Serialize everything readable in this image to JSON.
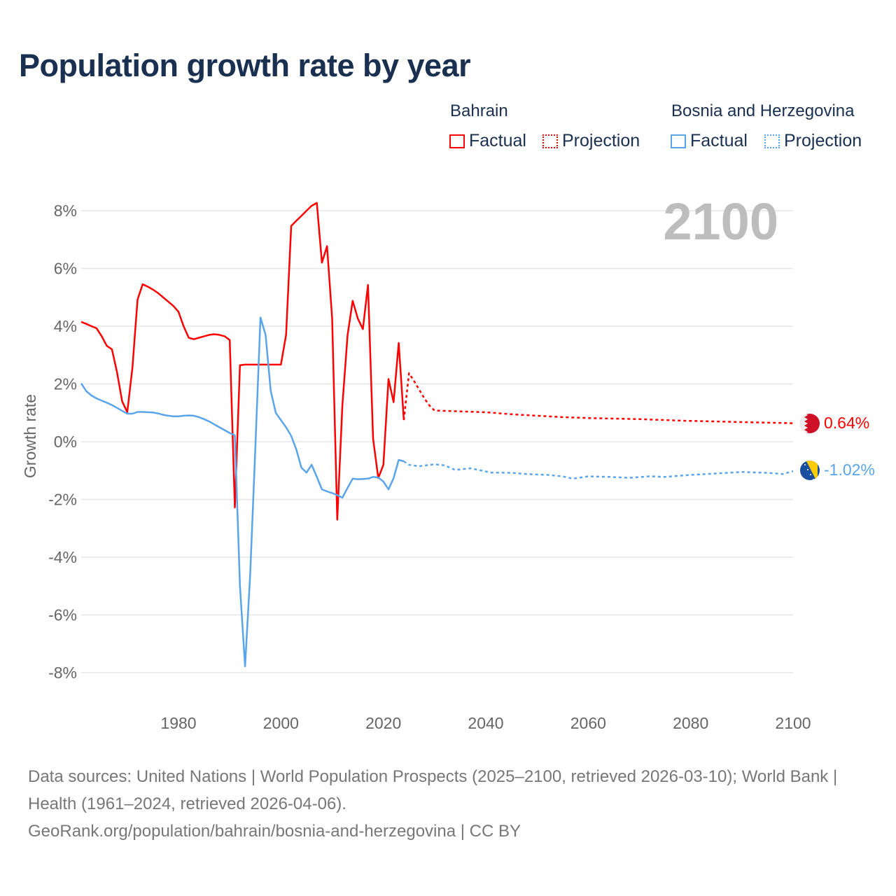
{
  "title": "Population growth rate by year",
  "legend": {
    "groups": [
      {
        "name": "Bahrain",
        "color": "#ff0000",
        "items": [
          "Factual",
          "Projection"
        ]
      },
      {
        "name": "Bosnia and Herzegovina",
        "color": "#5aa5ea",
        "items": [
          "Factual",
          "Projection"
        ]
      }
    ]
  },
  "current_year_label": "2100",
  "end_labels": {
    "bahrain": "0.64%",
    "bosnia": "-1.02%"
  },
  "footer": {
    "sources": "Data sources: United Nations | World Population Prospects (2025–2100, retrieved 2026-03-10); World Bank | Health (1961–2024, retrieved 2026-04-06).",
    "link": "GeoRank.org/population/bahrain/bosnia-and-herzegovina | CC BY"
  },
  "chart_data": {
    "type": "line",
    "title": "Population growth rate by year",
    "xlabel": "",
    "ylabel": "Growth rate",
    "xlim": [
      1961,
      2100
    ],
    "ylim": [
      -8,
      8
    ],
    "x_ticks": [
      "1980",
      "2000",
      "2020",
      "2040",
      "2060",
      "2080",
      "2100"
    ],
    "y_ticks": [
      "8%",
      "6%",
      "4%",
      "2%",
      "0%",
      "-2%",
      "-4%",
      "-6%",
      "-8%"
    ],
    "grid": true,
    "legend_position": "top-right",
    "series": [
      {
        "name": "Bahrain",
        "kind": "Factual",
        "color": "#ff0000",
        "x": [
          1961,
          1962,
          1963,
          1964,
          1965,
          1966,
          1967,
          1968,
          1969,
          1970,
          1971,
          1972,
          1973,
          1974,
          1975,
          1976,
          1977,
          1978,
          1979,
          1980,
          1981,
          1982,
          1983,
          1984,
          1985,
          1986,
          1987,
          1988,
          1989,
          1990,
          1991,
          1992,
          1993,
          1994,
          1995,
          1996,
          1997,
          1998,
          1999,
          2000,
          2001,
          2002,
          2003,
          2004,
          2005,
          2006,
          2007,
          2008,
          2009,
          2010,
          2011,
          2012,
          2013,
          2014,
          2015,
          2016,
          2017,
          2018,
          2019,
          2020,
          2021,
          2022,
          2023,
          2024
        ],
        "y": [
          4.15,
          4.08,
          4.0,
          3.93,
          3.65,
          3.32,
          3.2,
          2.4,
          1.4,
          1.02,
          2.57,
          4.92,
          5.45,
          5.37,
          5.27,
          5.15,
          5.0,
          4.85,
          4.7,
          4.5,
          4.0,
          3.6,
          3.55,
          3.6,
          3.65,
          3.7,
          3.72,
          3.7,
          3.65,
          3.52,
          -2.28,
          2.65,
          2.67,
          2.67,
          2.67,
          2.67,
          2.67,
          2.67,
          2.67,
          2.67,
          3.7,
          7.47,
          7.65,
          7.82,
          8.0,
          8.17,
          8.27,
          6.2,
          6.77,
          4.27,
          -2.7,
          1.25,
          3.68,
          4.88,
          4.27,
          3.9,
          5.43,
          0.1,
          -1.26,
          -0.8,
          2.17,
          1.37,
          3.42,
          0.75
        ]
      },
      {
        "name": "Bahrain",
        "kind": "Projection",
        "color": "#ff0000",
        "x": [
          2024,
          2025,
          2026,
          2027,
          2028,
          2029,
          2030,
          2035,
          2040,
          2045,
          2050,
          2055,
          2060,
          2065,
          2070,
          2075,
          2080,
          2085,
          2090,
          2095,
          2100
        ],
        "y": [
          0.75,
          2.37,
          2.1,
          1.8,
          1.5,
          1.25,
          1.08,
          1.05,
          1.02,
          0.95,
          0.9,
          0.85,
          0.82,
          0.8,
          0.78,
          0.75,
          0.72,
          0.7,
          0.68,
          0.66,
          0.64
        ]
      },
      {
        "name": "Bosnia and Herzegovina",
        "kind": "Factual",
        "color": "#5aa5ea",
        "x": [
          1961,
          1962,
          1963,
          1964,
          1965,
          1966,
          1967,
          1968,
          1969,
          1970,
          1971,
          1972,
          1973,
          1974,
          1975,
          1976,
          1977,
          1978,
          1979,
          1980,
          1981,
          1982,
          1983,
          1984,
          1985,
          1986,
          1987,
          1988,
          1989,
          1990,
          1991,
          1992,
          1993,
          1994,
          1995,
          1996,
          1997,
          1998,
          1999,
          2000,
          2001,
          2002,
          2003,
          2004,
          2005,
          2006,
          2007,
          2008,
          2009,
          2010,
          2011,
          2012,
          2013,
          2014,
          2015,
          2016,
          2017,
          2018,
          2019,
          2020,
          2021,
          2022,
          2023,
          2024
        ],
        "y": [
          2.02,
          1.75,
          1.6,
          1.5,
          1.42,
          1.35,
          1.27,
          1.17,
          1.07,
          0.97,
          0.97,
          1.03,
          1.03,
          1.02,
          1.01,
          0.98,
          0.93,
          0.9,
          0.88,
          0.88,
          0.9,
          0.91,
          0.9,
          0.85,
          0.78,
          0.7,
          0.6,
          0.5,
          0.4,
          0.3,
          0.22,
          -5.0,
          -7.78,
          -4.6,
          -0.2,
          4.3,
          3.7,
          1.77,
          1.0,
          0.75,
          0.5,
          0.2,
          -0.27,
          -0.9,
          -1.07,
          -0.8,
          -1.22,
          -1.65,
          -1.72,
          -1.78,
          -1.85,
          -1.94,
          -1.6,
          -1.28,
          -1.3,
          -1.29,
          -1.28,
          -1.22,
          -1.24,
          -1.38,
          -1.65,
          -1.26,
          -0.63,
          -0.68
        ]
      },
      {
        "name": "Bosnia and Herzegovina",
        "kind": "Projection",
        "color": "#5aa5ea",
        "x": [
          2024,
          2025,
          2027,
          2030,
          2032,
          2034,
          2037,
          2041,
          2045,
          2048,
          2052,
          2055,
          2057,
          2060,
          2064,
          2068,
          2072,
          2075,
          2080,
          2085,
          2090,
          2095,
          2098,
          2100
        ],
        "y": [
          -0.68,
          -0.8,
          -0.85,
          -0.78,
          -0.82,
          -0.98,
          -0.92,
          -1.07,
          -1.08,
          -1.12,
          -1.15,
          -1.2,
          -1.28,
          -1.2,
          -1.22,
          -1.25,
          -1.2,
          -1.22,
          -1.15,
          -1.1,
          -1.05,
          -1.08,
          -1.12,
          -1.02
        ]
      }
    ]
  }
}
